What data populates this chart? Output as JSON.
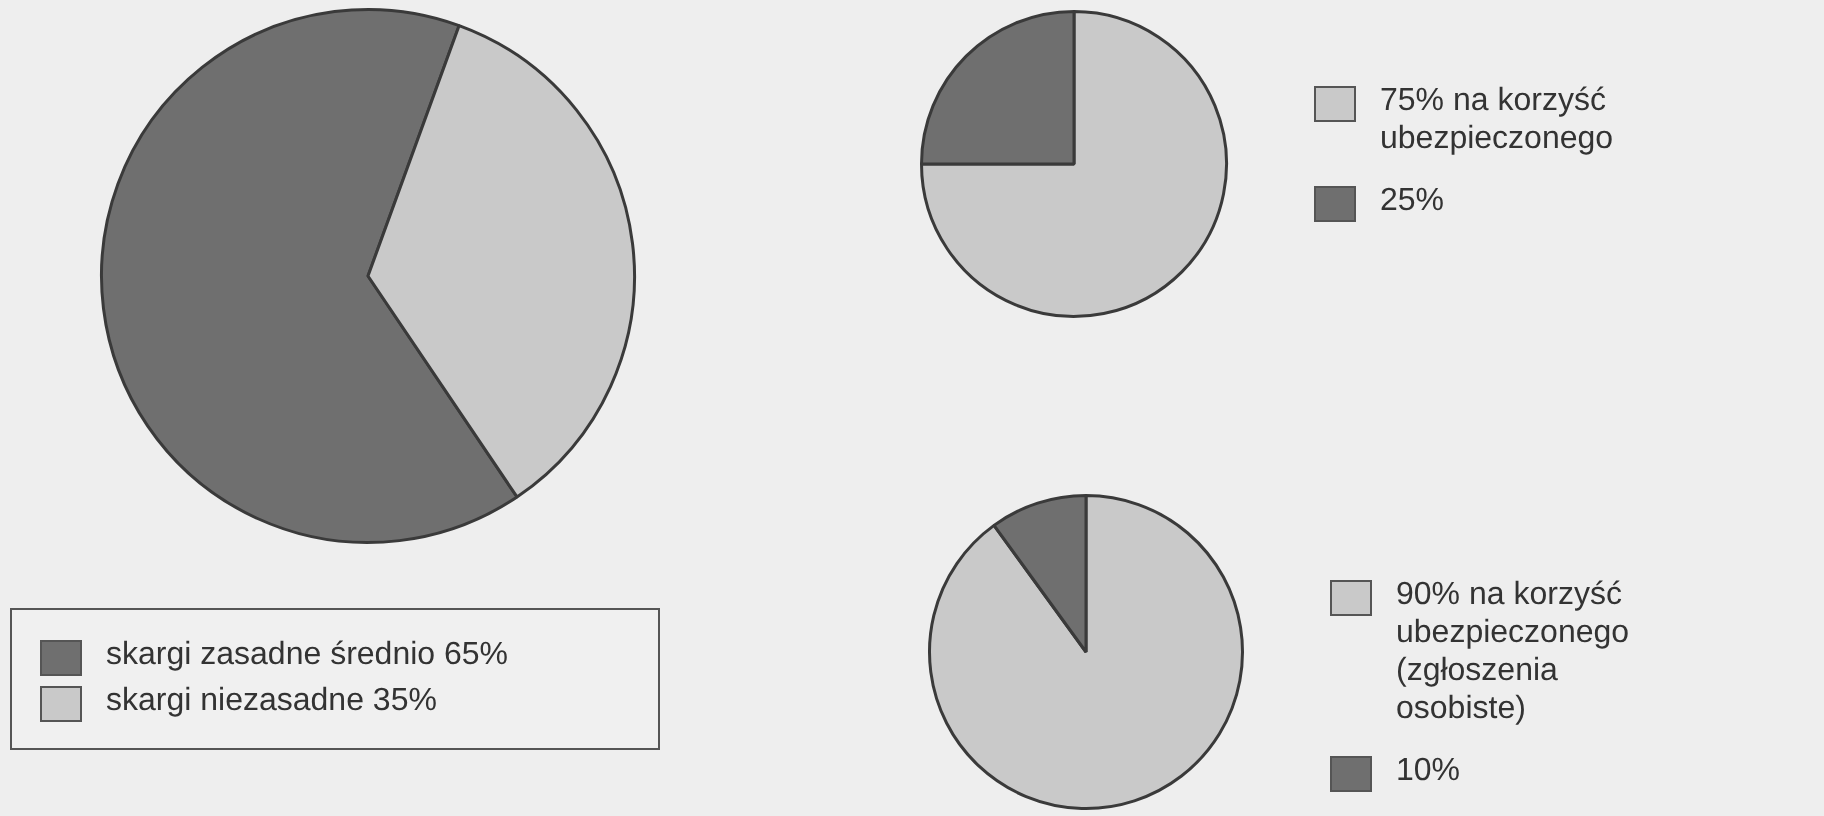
{
  "chart_data": [
    {
      "type": "pie",
      "categories": [
        "skargi zasadne średnio 65%",
        "skargi niezasadne 35%"
      ],
      "values": [
        65,
        35
      ],
      "colors": [
        "#6f6f6f",
        "#c9c9c9"
      ],
      "legend": "bottom left"
    },
    {
      "type": "pie",
      "categories": [
        "75% na korzyść ubezpieczonego",
        "25%"
      ],
      "values": [
        75,
        25
      ],
      "colors": [
        "#c9c9c9",
        "#6f6f6f"
      ],
      "legend": "right"
    },
    {
      "type": "pie",
      "categories": [
        "90% na korzyść ubezpieczonego (zgłoszenia osobiste)",
        "10%"
      ],
      "values": [
        90,
        10
      ],
      "colors": [
        "#c9c9c9",
        "#6f6f6f"
      ],
      "legend": "right"
    }
  ]
}
